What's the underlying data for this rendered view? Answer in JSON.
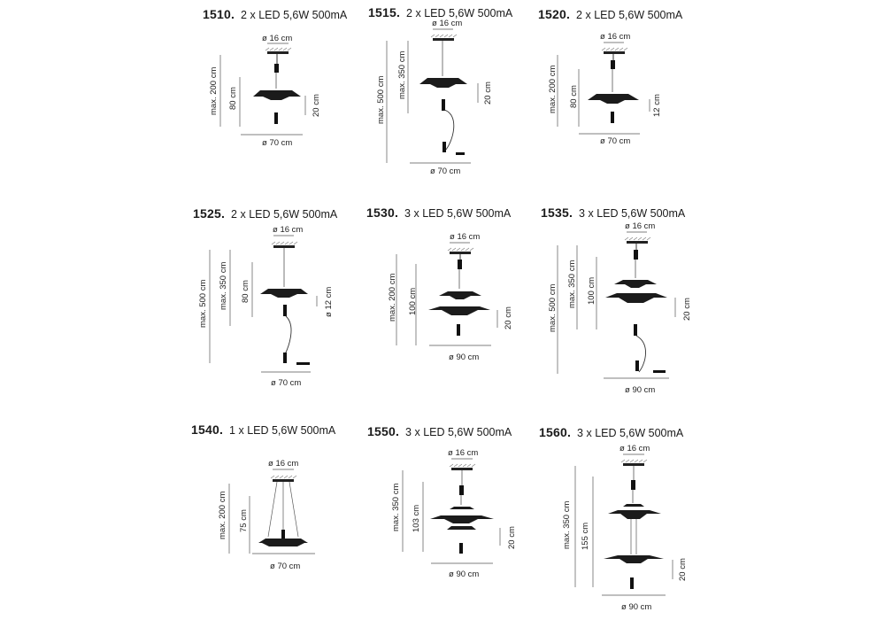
{
  "lamps": [
    {
      "code": "1510.",
      "spec": "2 x  LED 5,6W 500mA",
      "dims": [
        "ø 16 cm",
        "max. 200 cm",
        "80 cm",
        "20 cm",
        "ø 70 cm"
      ]
    },
    {
      "code": "1515.",
      "spec": "2 x  LED 5,6W 500mA",
      "dims": [
        "ø 16 cm",
        "max. 500 cm",
        "max. 350 cm",
        "20 cm",
        "ø 70 cm"
      ]
    },
    {
      "code": "1520.",
      "spec": "2 x  LED 5,6W 500mA",
      "dims": [
        "ø 16 cm",
        "max. 200 cm",
        "80 cm",
        "12 cm",
        "ø 70 cm"
      ]
    },
    {
      "code": "1525.",
      "spec": "2 x  LED 5,6W 500mA",
      "dims": [
        "ø 16 cm",
        "max. 500 cm",
        "max. 350 cm",
        "80 cm",
        "ø 12 cm",
        "ø 70 cm"
      ]
    },
    {
      "code": "1530.",
      "spec": "3 x  LED 5,6W 500mA",
      "dims": [
        "ø 16 cm",
        "max. 200 cm",
        "100 cm",
        "20 cm",
        "ø 90 cm"
      ]
    },
    {
      "code": "1535.",
      "spec": "3 x  LED 5,6W 500mA",
      "dims": [
        "ø 16 cm",
        "max. 500 cm",
        "max. 350 cm",
        "100 cm",
        "20 cm",
        "ø 90 cm"
      ]
    },
    {
      "code": "1540.",
      "spec": "1 x  LED 5,6W 500mA",
      "dims": [
        "ø 16 cm",
        "max. 200 cm",
        "75 cm",
        "ø 70 cm"
      ]
    },
    {
      "code": "1550.",
      "spec": "3 x  LED 5,6W 500mA",
      "dims": [
        "ø 16 cm",
        "max. 350 cm",
        "103 cm",
        "20 cm",
        "ø 90 cm"
      ]
    },
    {
      "code": "1560.",
      "spec": "3 x  LED 5,6W 500mA",
      "dims": [
        "ø 16 cm",
        "max. 350 cm",
        "155 cm",
        "20 cm",
        "ø 90 cm"
      ]
    }
  ]
}
